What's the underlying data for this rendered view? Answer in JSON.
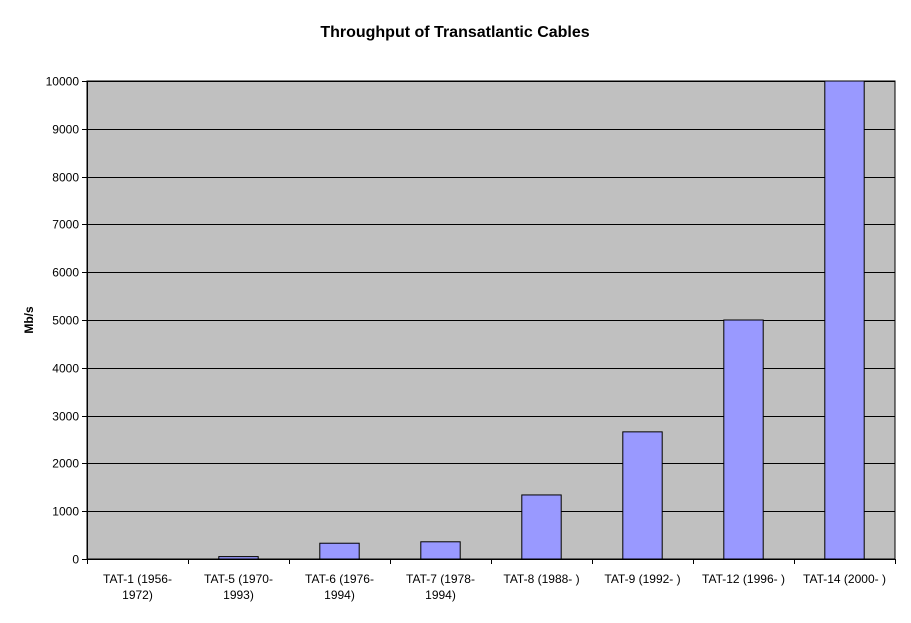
{
  "chart_data": {
    "type": "bar",
    "title": "Throughput of Transatlantic Cables",
    "xlabel": "",
    "ylabel": "Mb/s",
    "ylim": [
      0,
      10000
    ],
    "yticks": [
      "0",
      "1000",
      "2000",
      "3000",
      "4000",
      "5000",
      "6000",
      "7000",
      "8000",
      "9000",
      "10000"
    ],
    "categories": [
      [
        "TAT-1 (1956-",
        "1972)"
      ],
      [
        "TAT-5 (1970-",
        "1993)"
      ],
      [
        "TAT-6 (1976-",
        "1994)"
      ],
      [
        "TAT-7 (1978-",
        "1994)"
      ],
      [
        "TAT-8 (1988- )"
      ],
      [
        "TAT-9 (1992- )"
      ],
      [
        "TAT-12 (1996- )"
      ],
      [
        "TAT-14 (2000- )"
      ]
    ],
    "values": [
      0.1,
      50,
      330,
      360,
      1340,
      2660,
      5000,
      10000
    ],
    "grid": true,
    "colors": {
      "plot_bg": "#c0c0c0",
      "bar": "#9999ff",
      "gridline": "#000000",
      "axis": "#000000"
    }
  }
}
